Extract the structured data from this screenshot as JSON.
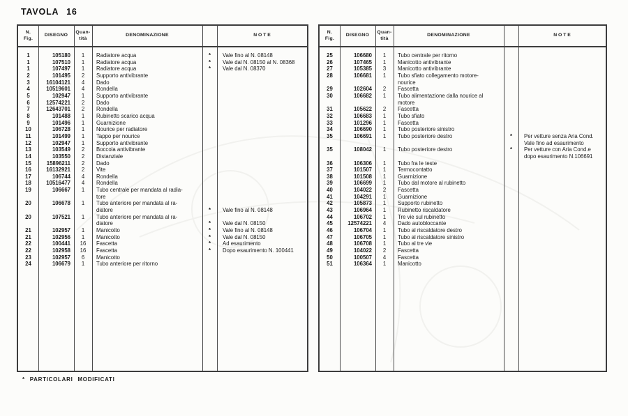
{
  "page": {
    "title": "TAVOLA 16",
    "footnote": "* PARTICOLARI MODIFICATI"
  },
  "table_header": {
    "fig": "N.\nFig.",
    "disegno": "DISEGNO",
    "qty": "Quan-\ntità",
    "denominazione": "DENOMINAZIONE",
    "star": "",
    "note": "N O T E"
  },
  "left_table": {
    "rows": [
      {
        "fig": "1",
        "dis": "105180",
        "qty": "1",
        "den": "Radiatore acqua",
        "star": "*",
        "note": "Vale fino al N. 08148"
      },
      {
        "fig": "1",
        "dis": "107510",
        "qty": "1",
        "den": "Radiatore acqua",
        "star": "*",
        "note": "Vale dal N. 08150 al N. 08368"
      },
      {
        "fig": "1",
        "dis": "107497",
        "qty": "1",
        "den": "Radiatore acqua",
        "star": "*",
        "note": "Vale dal N. 08370"
      },
      {
        "fig": "2",
        "dis": "101495",
        "qty": "2",
        "den": "Supporto antivibrante",
        "star": "",
        "note": ""
      },
      {
        "fig": "3",
        "dis": "16104121",
        "qty": "4",
        "den": "Dado",
        "star": "",
        "note": ""
      },
      {
        "fig": "4",
        "dis": "10519601",
        "qty": "4",
        "den": "Rondella",
        "star": "",
        "note": ""
      },
      {
        "fig": "5",
        "dis": "102947",
        "qty": "1",
        "den": "Supporto antivibrante",
        "star": "",
        "note": ""
      },
      {
        "fig": "6",
        "dis": "12574221",
        "qty": "2",
        "den": "Dado",
        "star": "",
        "note": ""
      },
      {
        "fig": "7",
        "dis": "12643701",
        "qty": "2",
        "den": "Rondella",
        "star": "",
        "note": ""
      },
      {
        "fig": "8",
        "dis": "101488",
        "qty": "1",
        "den": "Rubinetto scarico acqua",
        "star": "",
        "note": ""
      },
      {
        "fig": "9",
        "dis": "101496",
        "qty": "1",
        "den": "Guarnizione",
        "star": "",
        "note": ""
      },
      {
        "fig": "10",
        "dis": "106728",
        "qty": "1",
        "den": "Nourice per radiatore",
        "star": "",
        "note": ""
      },
      {
        "fig": "11",
        "dis": "101499",
        "qty": "1",
        "den": "Tappo per nourice",
        "star": "",
        "note": ""
      },
      {
        "fig": "12",
        "dis": "102947",
        "qty": "1",
        "den": "Supporto antivibrante",
        "star": "",
        "note": ""
      },
      {
        "fig": "13",
        "dis": "103549",
        "qty": "2",
        "den": "Boccola antivibrante",
        "star": "",
        "note": ""
      },
      {
        "fig": "14",
        "dis": "103550",
        "qty": "2",
        "den": "Distanziale",
        "star": "",
        "note": ""
      },
      {
        "fig": "15",
        "dis": "15896211",
        "qty": "2",
        "den": "Dado",
        "star": "",
        "note": ""
      },
      {
        "fig": "16",
        "dis": "16132921",
        "qty": "2",
        "den": "Vite",
        "star": "",
        "note": ""
      },
      {
        "fig": "17",
        "dis": "106744",
        "qty": "4",
        "den": "Rondella",
        "star": "",
        "note": ""
      },
      {
        "fig": "18",
        "dis": "10516477",
        "qty": "4",
        "den": "Rondella",
        "star": "",
        "note": ""
      },
      {
        "fig": "19",
        "dis": "106667",
        "qty": "1",
        "den": "Tubo centrale per mandata al radia-\ntore",
        "star": "",
        "note": ""
      },
      {
        "fig": "20",
        "dis": "106678",
        "qty": "1",
        "den": "Tubo anteriore per mandata al ra-\ndiatore",
        "star": "\n*",
        "note": "\nVale fino al N. 08148"
      },
      {
        "fig": "20",
        "dis": "107521",
        "qty": "1",
        "den": "Tubo anteriore per mandata al ra-\ndiatore",
        "star": "\n*",
        "note": "\nVale dal N. 08150"
      },
      {
        "fig": "21",
        "dis": "102957",
        "qty": "1",
        "den": "Manicotto",
        "star": "*",
        "note": "Vale fino al N. 08148"
      },
      {
        "fig": "21",
        "dis": "102956",
        "qty": "1",
        "den": "Manicotto",
        "star": "*",
        "note": "Vale dal N. 08150"
      },
      {
        "fig": "22",
        "dis": "100441",
        "qty": "16",
        "den": "Fascetta",
        "star": "*",
        "note": "Ad esaurimento"
      },
      {
        "fig": "22",
        "dis": "102958",
        "qty": "16",
        "den": "Fascetta",
        "star": "*",
        "note": "Dopo esaurimento N. 100441"
      },
      {
        "fig": "23",
        "dis": "102957",
        "qty": "6",
        "den": "Manicotto",
        "star": "",
        "note": ""
      },
      {
        "fig": "24",
        "dis": "106679",
        "qty": "1",
        "den": "Tubo anteriore per ritorno",
        "star": "",
        "note": ""
      }
    ]
  },
  "right_table": {
    "rows": [
      {
        "fig": "25",
        "dis": "106680",
        "qty": "1",
        "den": "Tubo centrale per ritorno",
        "star": "",
        "note": ""
      },
      {
        "fig": "26",
        "dis": "107465",
        "qty": "1",
        "den": "Manicotto antivibrante",
        "star": "",
        "note": ""
      },
      {
        "fig": "27",
        "dis": "105385",
        "qty": "3",
        "den": "Manicotto antivibrante",
        "star": "",
        "note": ""
      },
      {
        "fig": "28",
        "dis": "106681",
        "qty": "1",
        "den": "Tubo sfiato collegamento motore-\nnourice",
        "star": "",
        "note": ""
      },
      {
        "fig": "29",
        "dis": "102604",
        "qty": "2",
        "den": "Fascetta",
        "star": "",
        "note": ""
      },
      {
        "fig": "30",
        "dis": "106682",
        "qty": "1",
        "den": "Tubo alimentazione dalla nourice al\nmotore",
        "star": "",
        "note": ""
      },
      {
        "fig": "31",
        "dis": "105622",
        "qty": "2",
        "den": "Fascetta",
        "star": "",
        "note": ""
      },
      {
        "fig": "32",
        "dis": "106683",
        "qty": "1",
        "den": "Tubo sfiato",
        "star": "",
        "note": ""
      },
      {
        "fig": "33",
        "dis": "101296",
        "qty": "1",
        "den": "Fascetta",
        "star": "",
        "note": ""
      },
      {
        "fig": "34",
        "dis": "106690",
        "qty": "1",
        "den": "Tubo posteriore sinistro",
        "star": "",
        "note": ""
      },
      {
        "fig": "35",
        "dis": "106691",
        "qty": "1",
        "den": "Tubo posteriore destro",
        "star": "*",
        "note": "Per vetture senza Aria Cond.\nVale fino ad esaurimento"
      },
      {
        "fig": "35",
        "dis": "108042",
        "qty": "1",
        "den": "Tubo posteriore destro",
        "star": "*",
        "note": "Per vetture con Aria Cond.e\ndopo esaurimento N.106691"
      },
      {
        "fig": "36",
        "dis": "106306",
        "qty": "1",
        "den": "Tubo fra le teste",
        "star": "",
        "note": ""
      },
      {
        "fig": "37",
        "dis": "101507",
        "qty": "1",
        "den": "Termocontatto",
        "star": "",
        "note": ""
      },
      {
        "fig": "38",
        "dis": "101508",
        "qty": "1",
        "den": "Guarnizione",
        "star": "",
        "note": ""
      },
      {
        "fig": "39",
        "dis": "106699",
        "qty": "1",
        "den": "Tubo dal motore al rubinetto",
        "star": "",
        "note": ""
      },
      {
        "fig": "40",
        "dis": "104022",
        "qty": "2",
        "den": "Fascetta",
        "star": "",
        "note": ""
      },
      {
        "fig": "41",
        "dis": "104291",
        "qty": "1",
        "den": "Guarnizione",
        "star": "",
        "note": ""
      },
      {
        "fig": "42",
        "dis": "105873",
        "qty": "1",
        "den": "Supporto rubinetto",
        "star": "",
        "note": ""
      },
      {
        "fig": "43",
        "dis": "106964",
        "qty": "1",
        "den": "Rubinetto riscaldatore",
        "star": "",
        "note": ""
      },
      {
        "fig": "44",
        "dis": "106702",
        "qty": "1",
        "den": "Tre vie sul rubinetto",
        "star": "",
        "note": ""
      },
      {
        "fig": "45",
        "dis": "12574221",
        "qty": "4",
        "den": "Dado autobloccante",
        "star": "",
        "note": ""
      },
      {
        "fig": "46",
        "dis": "106704",
        "qty": "1",
        "den": "Tubo al riscaldatore destro",
        "star": "",
        "note": ""
      },
      {
        "fig": "47",
        "dis": "106705",
        "qty": "1",
        "den": "Tubo al riscaldatore sinistro",
        "star": "",
        "note": ""
      },
      {
        "fig": "48",
        "dis": "106708",
        "qty": "1",
        "den": "Tubo al tre vie",
        "star": "",
        "note": ""
      },
      {
        "fig": "49",
        "dis": "104022",
        "qty": "2",
        "den": "Fascetta",
        "star": "",
        "note": ""
      },
      {
        "fig": "50",
        "dis": "100507",
        "qty": "4",
        "den": "Fascetta",
        "star": "",
        "note": ""
      },
      {
        "fig": "51",
        "dis": "106364",
        "qty": "1",
        "den": "Manicotto",
        "star": "",
        "note": ""
      }
    ]
  }
}
